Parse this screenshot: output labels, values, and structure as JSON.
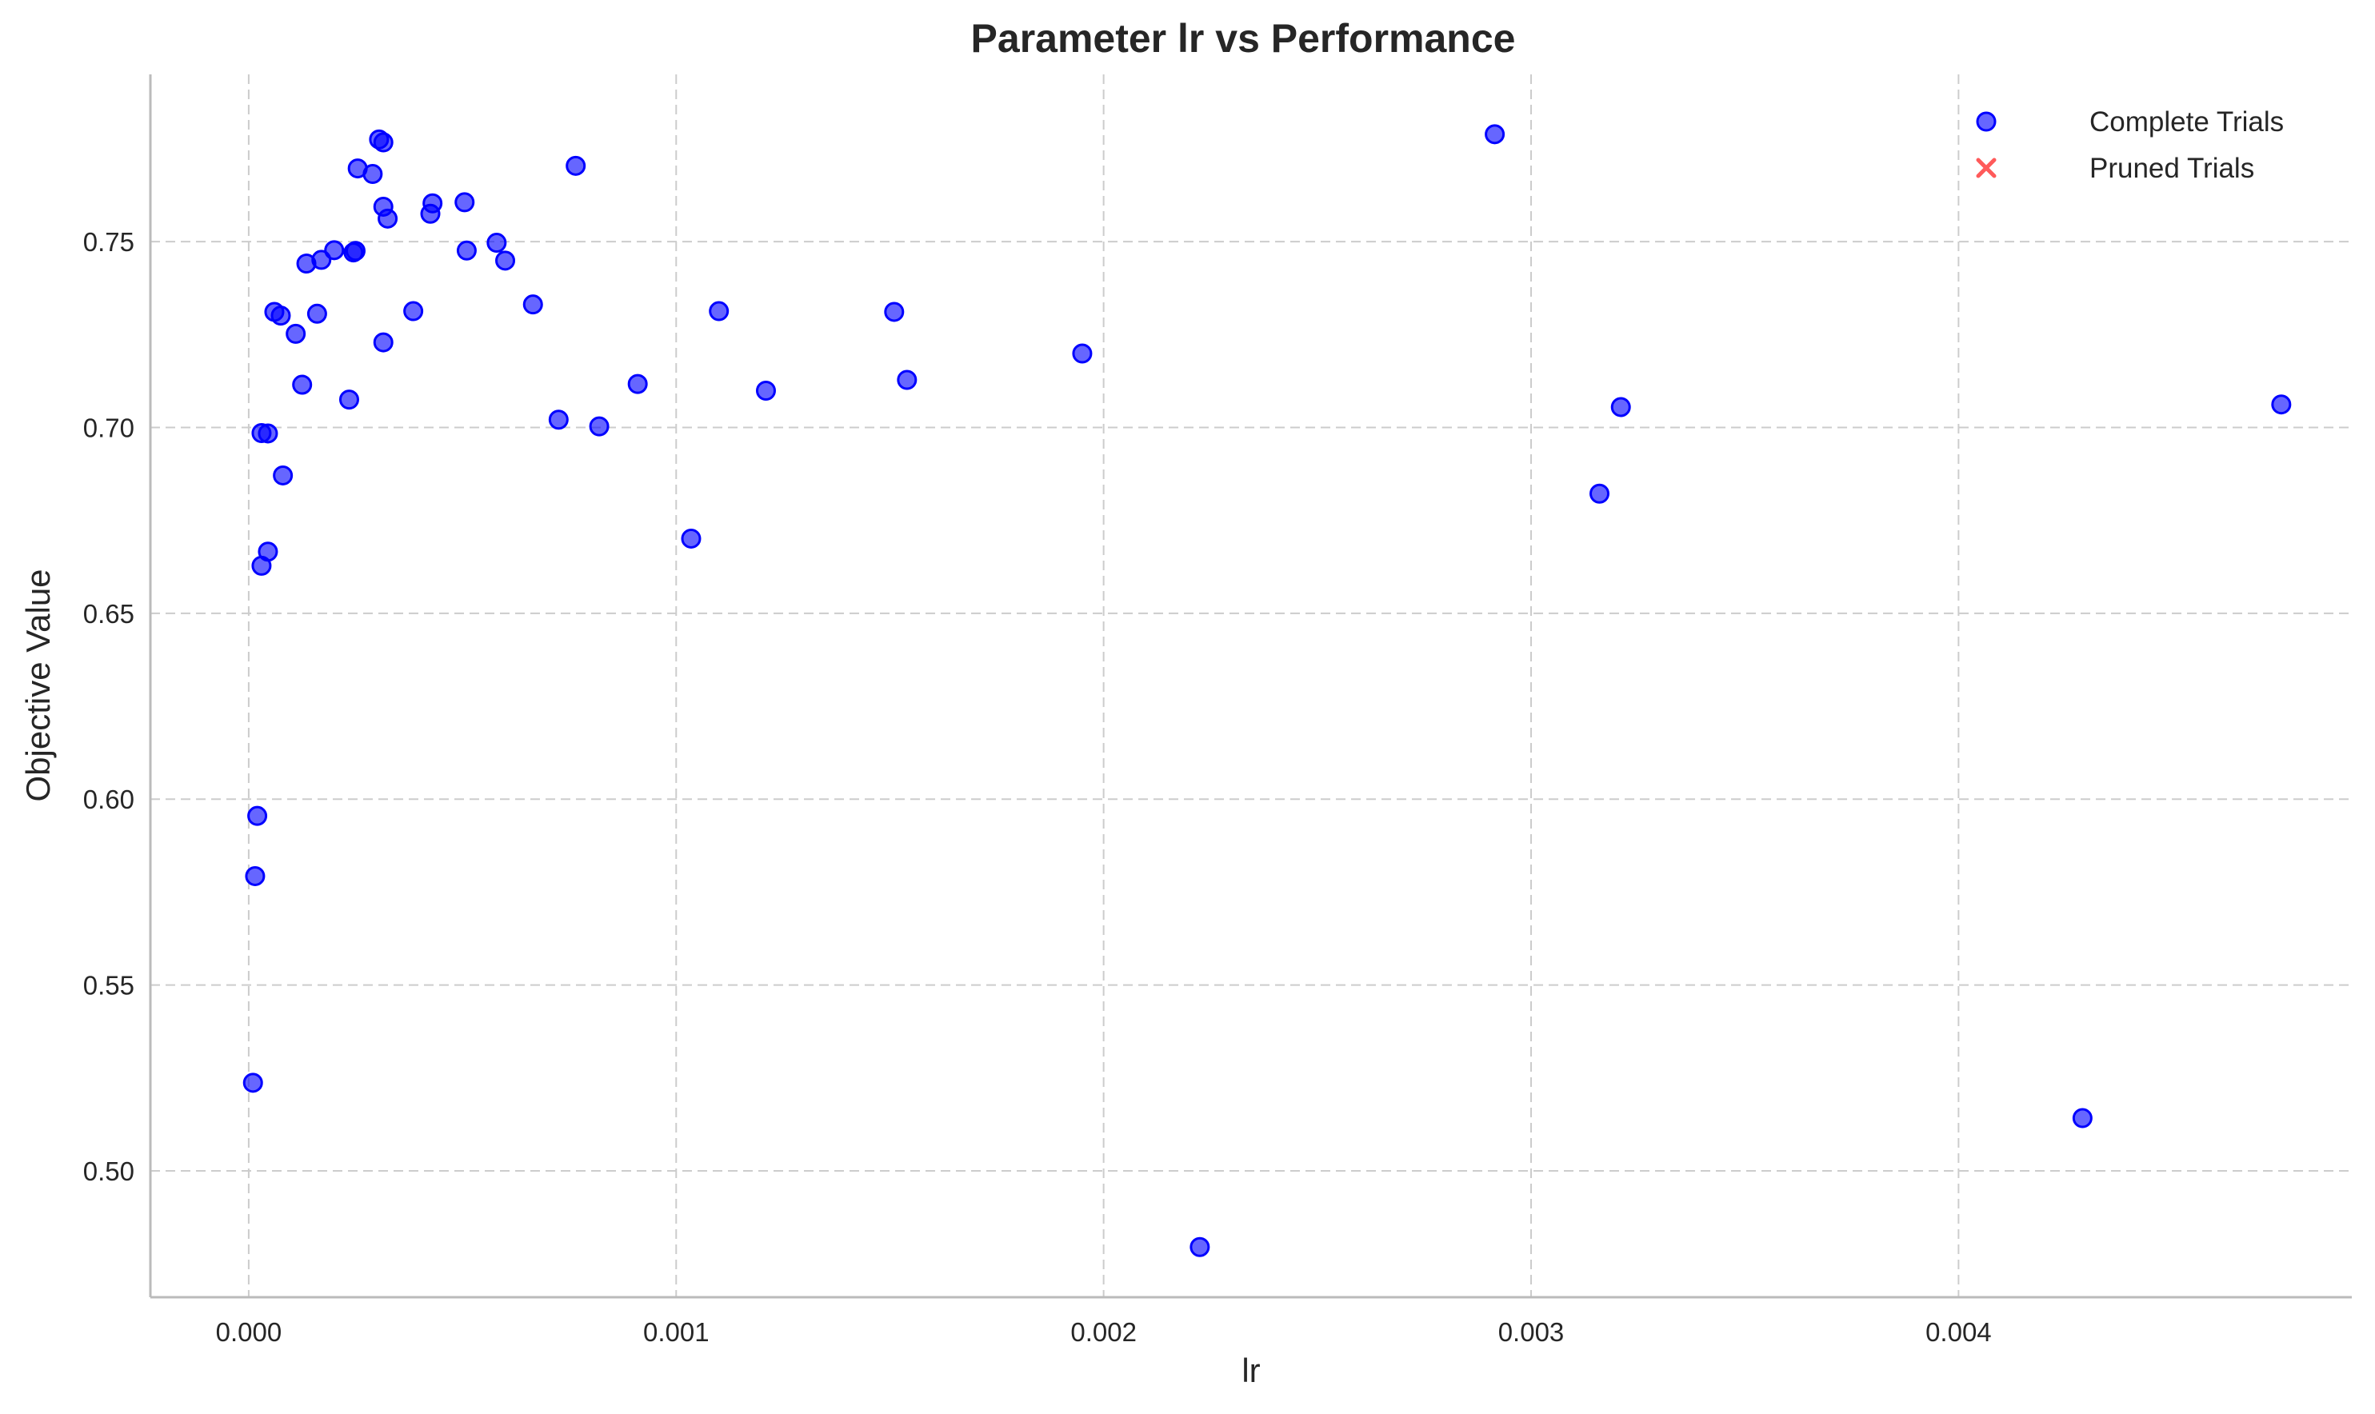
{
  "chart_data": {
    "type": "scatter",
    "title": "Parameter lr vs Performance",
    "xlabel": "lr",
    "ylabel": "Objective Value",
    "xlim": [
      -0.00023,
      0.00492
    ],
    "ylim": [
      0.466,
      0.795
    ],
    "xticks": [
      "0.000",
      "0.001",
      "0.002",
      "0.003",
      "0.004"
    ],
    "xtick_values": [
      0,
      0.001,
      0.002,
      0.003,
      0.004
    ],
    "yticks": [
      "0.50",
      "0.55",
      "0.60",
      "0.65",
      "0.70",
      "0.75"
    ],
    "ytick_values": [
      0.5,
      0.55,
      0.6,
      0.65,
      0.7,
      0.75
    ],
    "grid": true,
    "legend_position": "top-right",
    "series": [
      {
        "name": "Complete Trials",
        "marker": "circle",
        "color": "#0000ff",
        "points": [
          [
            1e-05,
            0.5237
          ],
          [
            1.5e-05,
            0.5793
          ],
          [
            2e-05,
            0.5955
          ],
          [
            3e-05,
            0.6628
          ],
          [
            4.5e-05,
            0.6666
          ],
          [
            3e-05,
            0.6985
          ],
          [
            4.5e-05,
            0.6984
          ],
          [
            8e-05,
            0.6871
          ],
          [
            6e-05,
            0.7311
          ],
          [
            7.5e-05,
            0.7301
          ],
          [
            0.00011,
            0.7252
          ],
          [
            0.000125,
            0.7115
          ],
          [
            0.000135,
            0.7441
          ],
          [
            0.00016,
            0.7306
          ],
          [
            0.00017,
            0.7451
          ],
          [
            0.0002,
            0.7477
          ],
          [
            0.000235,
            0.7075
          ],
          [
            0.000245,
            0.7471
          ],
          [
            0.00025,
            0.7475
          ],
          [
            0.000255,
            0.7697
          ],
          [
            0.00029,
            0.7682
          ],
          [
            0.000305,
            0.7775
          ],
          [
            0.000315,
            0.7767
          ],
          [
            0.000315,
            0.7594
          ],
          [
            0.000315,
            0.7229
          ],
          [
            0.000325,
            0.7562
          ],
          [
            0.000385,
            0.7313
          ],
          [
            0.000425,
            0.7575
          ],
          [
            0.00043,
            0.7603
          ],
          [
            0.000505,
            0.7606
          ],
          [
            0.00051,
            0.7476
          ],
          [
            0.00058,
            0.7497
          ],
          [
            0.0006,
            0.7449
          ],
          [
            0.000665,
            0.7331
          ],
          [
            0.000725,
            0.7021
          ],
          [
            0.000765,
            0.7704
          ],
          [
            0.00082,
            0.7003
          ],
          [
            0.00091,
            0.7117
          ],
          [
            0.001035,
            0.6701
          ],
          [
            0.0011,
            0.7313
          ],
          [
            0.00121,
            0.7099
          ],
          [
            0.00151,
            0.7311
          ],
          [
            0.00154,
            0.7128
          ],
          [
            0.00195,
            0.7199
          ],
          [
            0.002225,
            0.4795
          ],
          [
            0.002915,
            0.7789
          ],
          [
            0.00316,
            0.6822
          ],
          [
            0.00321,
            0.7055
          ],
          [
            0.00429,
            0.5142
          ],
          [
            0.004755,
            0.7062
          ]
        ]
      },
      {
        "name": "Pruned Trials",
        "marker": "x",
        "color": "#ff5a5a",
        "points": []
      }
    ]
  }
}
